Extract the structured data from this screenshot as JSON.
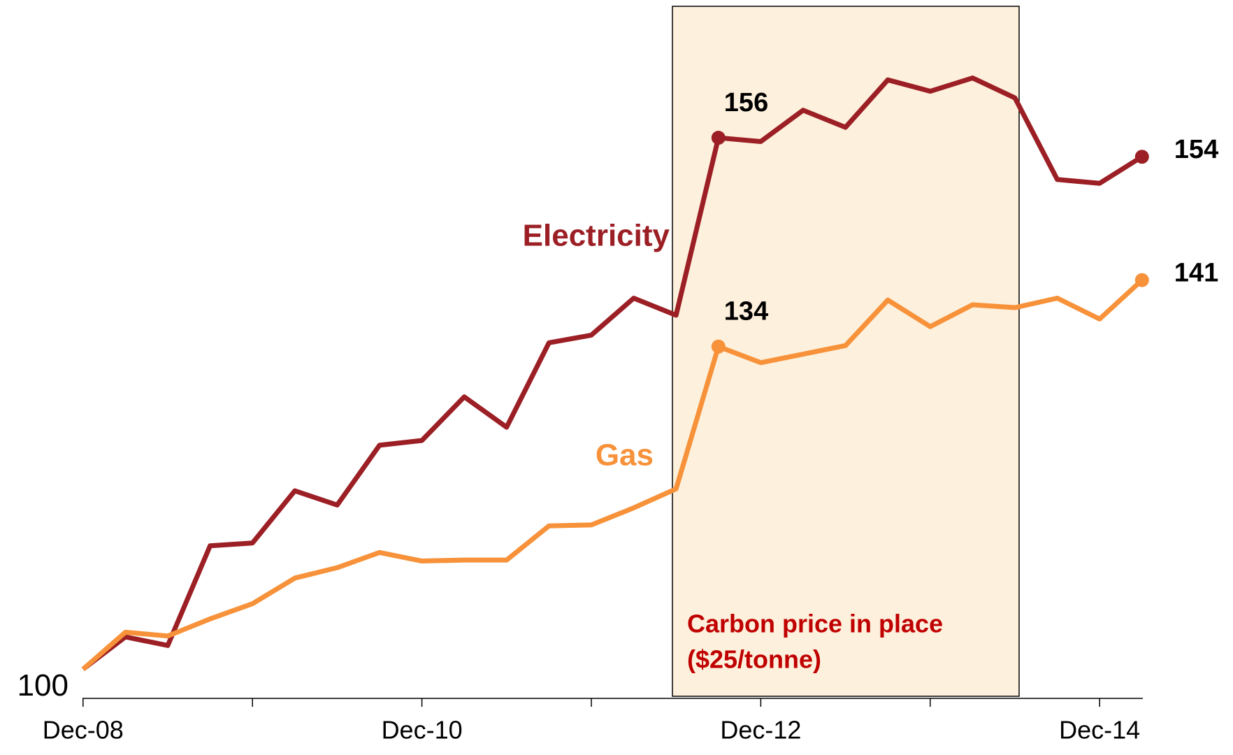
{
  "chart_data": {
    "type": "line",
    "categories": [
      "Dec-08",
      null,
      null,
      null,
      null,
      null,
      null,
      null,
      "Dec-10",
      null,
      null,
      null,
      null,
      null,
      null,
      null,
      "Dec-12",
      null,
      null,
      null,
      null,
      null,
      null,
      null,
      "Dec-14",
      null
    ],
    "series": [
      {
        "name": "Electricity",
        "color": "#9b1f24",
        "values": [
          100,
          103.4,
          102.5,
          113.0,
          113.3,
          118.8,
          117.3,
          123.6,
          124.1,
          128.7,
          125.5,
          134.4,
          135.2,
          139.1,
          137.3,
          156,
          155.6,
          158.9,
          157.1,
          162.1,
          160.9,
          162.3,
          160.2,
          151.6,
          151.2,
          154
        ],
        "value_labels": {
          "15": "156",
          "25": "154"
        }
      },
      {
        "name": "Gas",
        "color": "#f7923a",
        "values": [
          100,
          103.9,
          103.5,
          105.3,
          106.9,
          109.6,
          110.7,
          112.3,
          111.4,
          111.5,
          111.5,
          115.1,
          115.2,
          117.0,
          119.0,
          134,
          132.3,
          133.2,
          134.1,
          138.9,
          136.1,
          138.4,
          138.1,
          139.1,
          136.9,
          141
        ],
        "value_labels": {
          "15": "134",
          "25": "141"
        }
      }
    ],
    "ylim": [
      97,
      170
    ],
    "yticks": [
      100
    ],
    "annotations": [
      "Carbon price in place",
      "($25/tonne)"
    ]
  }
}
